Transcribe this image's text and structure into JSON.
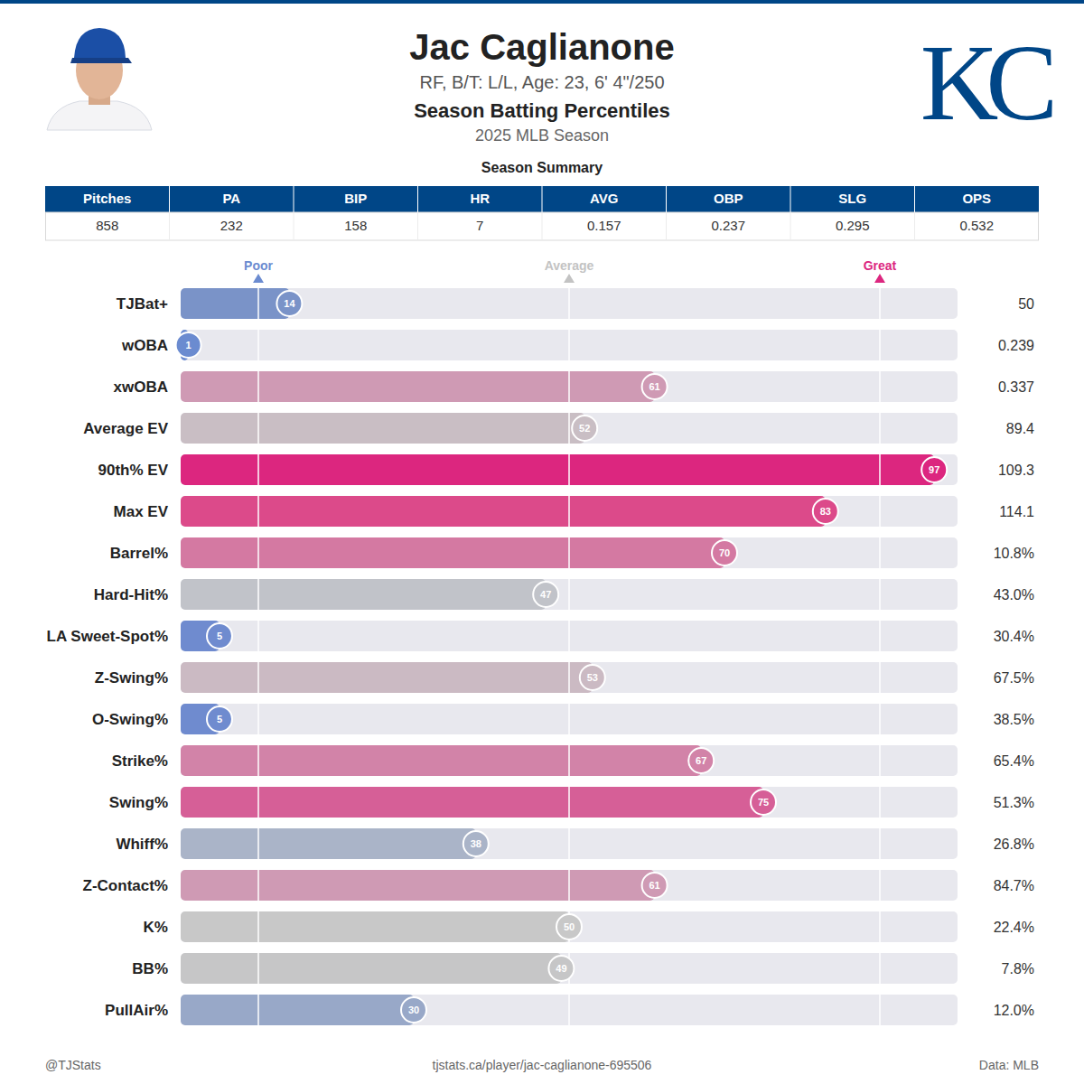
{
  "header": {
    "title": "Jac Caglianone",
    "subtitle": "RF, B/T: L/L, Age: 23, 6' 4\"/250",
    "heading": "Season Batting Percentiles",
    "season": "2025 MLB Season",
    "logo": "KC"
  },
  "summary": {
    "title": "Season Summary",
    "columns": [
      "Pitches",
      "PA",
      "BIP",
      "HR",
      "AVG",
      "OBP",
      "SLG",
      "OPS"
    ],
    "rows": [
      [
        "858",
        "232",
        "158",
        "7",
        "0.157",
        "0.237",
        "0.295",
        "0.532"
      ]
    ]
  },
  "chart_data": {
    "type": "bar",
    "orientation": "horizontal",
    "categories": [
      "TJBat+",
      "wOBA",
      "xwOBA",
      "Average EV",
      "90th% EV",
      "Max EV",
      "Barrel%",
      "Hard-Hit%",
      "LA Sweet-Spot%",
      "Z-Swing%",
      "O-Swing%",
      "Strike%",
      "Swing%",
      "Whiff%",
      "Z-Contact%",
      "K%",
      "BB%",
      "PullAir%"
    ],
    "values": [
      14,
      1,
      61,
      52,
      97,
      83,
      70,
      47,
      5,
      53,
      5,
      67,
      75,
      38,
      61,
      50,
      49,
      30
    ],
    "colors": [
      "#7a93c8",
      "#6b8bd0",
      "#cf9ab4",
      "#c9bec4",
      "#dc267f",
      "#dc4a8a",
      "#d479a2",
      "#c1c3c9",
      "#6f8bcf",
      "#cbbac3",
      "#6f8bcf",
      "#d283a8",
      "#d65f97",
      "#aab4c8",
      "#cf9ab4",
      "#c8c8c8",
      "#c6c6c7",
      "#98a8c8"
    ],
    "stats": [
      "50",
      "0.239",
      "0.337",
      "89.4",
      "109.3",
      "114.1",
      "10.8%",
      "43.0%",
      "30.4%",
      "67.5%",
      "38.5%",
      "65.4%",
      "51.3%",
      "26.8%",
      "84.7%",
      "22.4%",
      "7.8%",
      "12.0%"
    ],
    "xlim": [
      0,
      100
    ],
    "xticks": [
      {
        "value": 10,
        "label": "Poor"
      },
      {
        "value": 50,
        "label": "Average"
      },
      {
        "value": 90,
        "label": "Great"
      }
    ],
    "grid": true,
    "data_labels": true
  },
  "footer": {
    "left": "@TJStats",
    "center": "tjstats.ca/player/jac-caglianone-695506",
    "right": "Data: MLB"
  }
}
